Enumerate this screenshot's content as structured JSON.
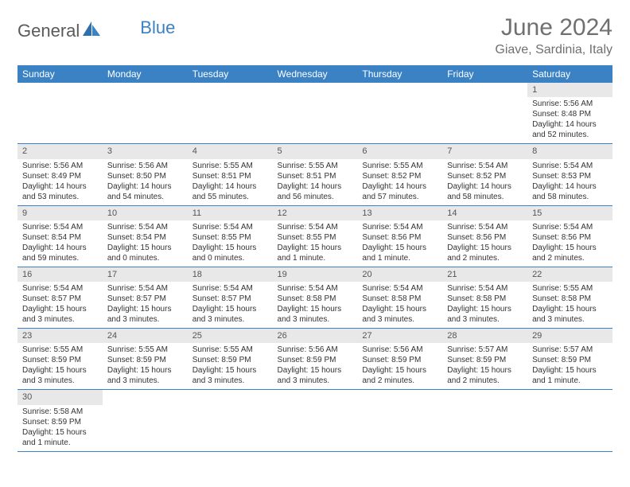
{
  "brand": {
    "general": "General",
    "blue": "Blue"
  },
  "title": "June 2024",
  "location": "Giave, Sardinia, Italy",
  "colors": {
    "header_bg": "#3b82c4",
    "header_text": "#ffffff",
    "daynum_bg": "#e8e8e8",
    "border": "#3b82c4",
    "title_color": "#707070"
  },
  "dayNames": [
    "Sunday",
    "Monday",
    "Tuesday",
    "Wednesday",
    "Thursday",
    "Friday",
    "Saturday"
  ],
  "weeks": [
    [
      null,
      null,
      null,
      null,
      null,
      null,
      {
        "n": "1",
        "sr": "Sunrise: 5:56 AM",
        "ss": "Sunset: 8:48 PM",
        "dl": "Daylight: 14 hours and 52 minutes."
      }
    ],
    [
      {
        "n": "2",
        "sr": "Sunrise: 5:56 AM",
        "ss": "Sunset: 8:49 PM",
        "dl": "Daylight: 14 hours and 53 minutes."
      },
      {
        "n": "3",
        "sr": "Sunrise: 5:56 AM",
        "ss": "Sunset: 8:50 PM",
        "dl": "Daylight: 14 hours and 54 minutes."
      },
      {
        "n": "4",
        "sr": "Sunrise: 5:55 AM",
        "ss": "Sunset: 8:51 PM",
        "dl": "Daylight: 14 hours and 55 minutes."
      },
      {
        "n": "5",
        "sr": "Sunrise: 5:55 AM",
        "ss": "Sunset: 8:51 PM",
        "dl": "Daylight: 14 hours and 56 minutes."
      },
      {
        "n": "6",
        "sr": "Sunrise: 5:55 AM",
        "ss": "Sunset: 8:52 PM",
        "dl": "Daylight: 14 hours and 57 minutes."
      },
      {
        "n": "7",
        "sr": "Sunrise: 5:54 AM",
        "ss": "Sunset: 8:52 PM",
        "dl": "Daylight: 14 hours and 58 minutes."
      },
      {
        "n": "8",
        "sr": "Sunrise: 5:54 AM",
        "ss": "Sunset: 8:53 PM",
        "dl": "Daylight: 14 hours and 58 minutes."
      }
    ],
    [
      {
        "n": "9",
        "sr": "Sunrise: 5:54 AM",
        "ss": "Sunset: 8:54 PM",
        "dl": "Daylight: 14 hours and 59 minutes."
      },
      {
        "n": "10",
        "sr": "Sunrise: 5:54 AM",
        "ss": "Sunset: 8:54 PM",
        "dl": "Daylight: 15 hours and 0 minutes."
      },
      {
        "n": "11",
        "sr": "Sunrise: 5:54 AM",
        "ss": "Sunset: 8:55 PM",
        "dl": "Daylight: 15 hours and 0 minutes."
      },
      {
        "n": "12",
        "sr": "Sunrise: 5:54 AM",
        "ss": "Sunset: 8:55 PM",
        "dl": "Daylight: 15 hours and 1 minute."
      },
      {
        "n": "13",
        "sr": "Sunrise: 5:54 AM",
        "ss": "Sunset: 8:56 PM",
        "dl": "Daylight: 15 hours and 1 minute."
      },
      {
        "n": "14",
        "sr": "Sunrise: 5:54 AM",
        "ss": "Sunset: 8:56 PM",
        "dl": "Daylight: 15 hours and 2 minutes."
      },
      {
        "n": "15",
        "sr": "Sunrise: 5:54 AM",
        "ss": "Sunset: 8:56 PM",
        "dl": "Daylight: 15 hours and 2 minutes."
      }
    ],
    [
      {
        "n": "16",
        "sr": "Sunrise: 5:54 AM",
        "ss": "Sunset: 8:57 PM",
        "dl": "Daylight: 15 hours and 3 minutes."
      },
      {
        "n": "17",
        "sr": "Sunrise: 5:54 AM",
        "ss": "Sunset: 8:57 PM",
        "dl": "Daylight: 15 hours and 3 minutes."
      },
      {
        "n": "18",
        "sr": "Sunrise: 5:54 AM",
        "ss": "Sunset: 8:57 PM",
        "dl": "Daylight: 15 hours and 3 minutes."
      },
      {
        "n": "19",
        "sr": "Sunrise: 5:54 AM",
        "ss": "Sunset: 8:58 PM",
        "dl": "Daylight: 15 hours and 3 minutes."
      },
      {
        "n": "20",
        "sr": "Sunrise: 5:54 AM",
        "ss": "Sunset: 8:58 PM",
        "dl": "Daylight: 15 hours and 3 minutes."
      },
      {
        "n": "21",
        "sr": "Sunrise: 5:54 AM",
        "ss": "Sunset: 8:58 PM",
        "dl": "Daylight: 15 hours and 3 minutes."
      },
      {
        "n": "22",
        "sr": "Sunrise: 5:55 AM",
        "ss": "Sunset: 8:58 PM",
        "dl": "Daylight: 15 hours and 3 minutes."
      }
    ],
    [
      {
        "n": "23",
        "sr": "Sunrise: 5:55 AM",
        "ss": "Sunset: 8:59 PM",
        "dl": "Daylight: 15 hours and 3 minutes."
      },
      {
        "n": "24",
        "sr": "Sunrise: 5:55 AM",
        "ss": "Sunset: 8:59 PM",
        "dl": "Daylight: 15 hours and 3 minutes."
      },
      {
        "n": "25",
        "sr": "Sunrise: 5:55 AM",
        "ss": "Sunset: 8:59 PM",
        "dl": "Daylight: 15 hours and 3 minutes."
      },
      {
        "n": "26",
        "sr": "Sunrise: 5:56 AM",
        "ss": "Sunset: 8:59 PM",
        "dl": "Daylight: 15 hours and 3 minutes."
      },
      {
        "n": "27",
        "sr": "Sunrise: 5:56 AM",
        "ss": "Sunset: 8:59 PM",
        "dl": "Daylight: 15 hours and 2 minutes."
      },
      {
        "n": "28",
        "sr": "Sunrise: 5:57 AM",
        "ss": "Sunset: 8:59 PM",
        "dl": "Daylight: 15 hours and 2 minutes."
      },
      {
        "n": "29",
        "sr": "Sunrise: 5:57 AM",
        "ss": "Sunset: 8:59 PM",
        "dl": "Daylight: 15 hours and 1 minute."
      }
    ],
    [
      {
        "n": "30",
        "sr": "Sunrise: 5:58 AM",
        "ss": "Sunset: 8:59 PM",
        "dl": "Daylight: 15 hours and 1 minute."
      },
      null,
      null,
      null,
      null,
      null,
      null
    ]
  ]
}
